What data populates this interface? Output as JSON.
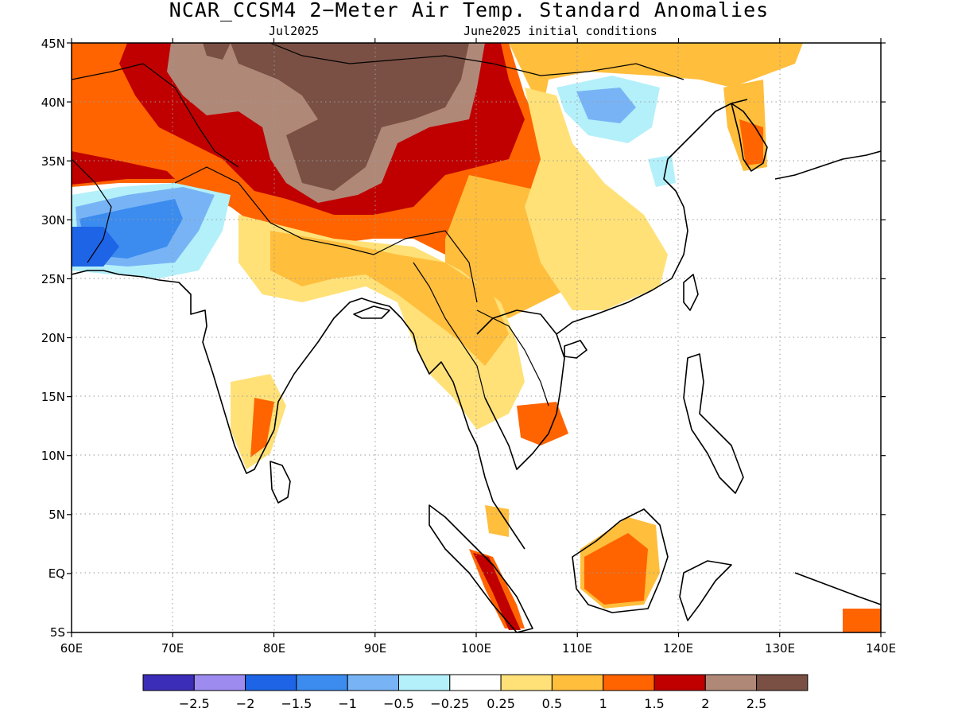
{
  "title": "NCAR_CCSM4 2−Meter Air Temp. Standard Anomalies",
  "target_month": "Jul2025",
  "initial_conditions": "June2025 initial conditions",
  "lon_labels": [
    "60E",
    "70E",
    "80E",
    "90E",
    "100E",
    "110E",
    "120E",
    "130E",
    "140E"
  ],
  "lat_labels": [
    "45N",
    "40N",
    "35N",
    "30N",
    "25N",
    "20N",
    "15N",
    "10N",
    "5N",
    "EQ",
    "5S"
  ],
  "colorbar": {
    "colors": [
      "#3b2db8",
      "#9e8bf0",
      "#1e64e6",
      "#3c8cf0",
      "#78b4f5",
      "#b4f0fa",
      "#ffffff",
      "#ffe178",
      "#ffbe3c",
      "#ff6400",
      "#c00000",
      "#b08878",
      "#7a5044"
    ],
    "labels": [
      "−2.5",
      "−2",
      "−1.5",
      "−1",
      "−0.5",
      "−0.25",
      "0.25",
      "0.5",
      "1",
      "1.5",
      "2",
      "2.5"
    ]
  },
  "map_data": {
    "lon_range": [
      60,
      140
    ],
    "lat_range": [
      -5,
      45
    ],
    "projection": "equirectangular",
    "variable": "2-meter air temperature standardized anomaly",
    "gridlines": true
  }
}
